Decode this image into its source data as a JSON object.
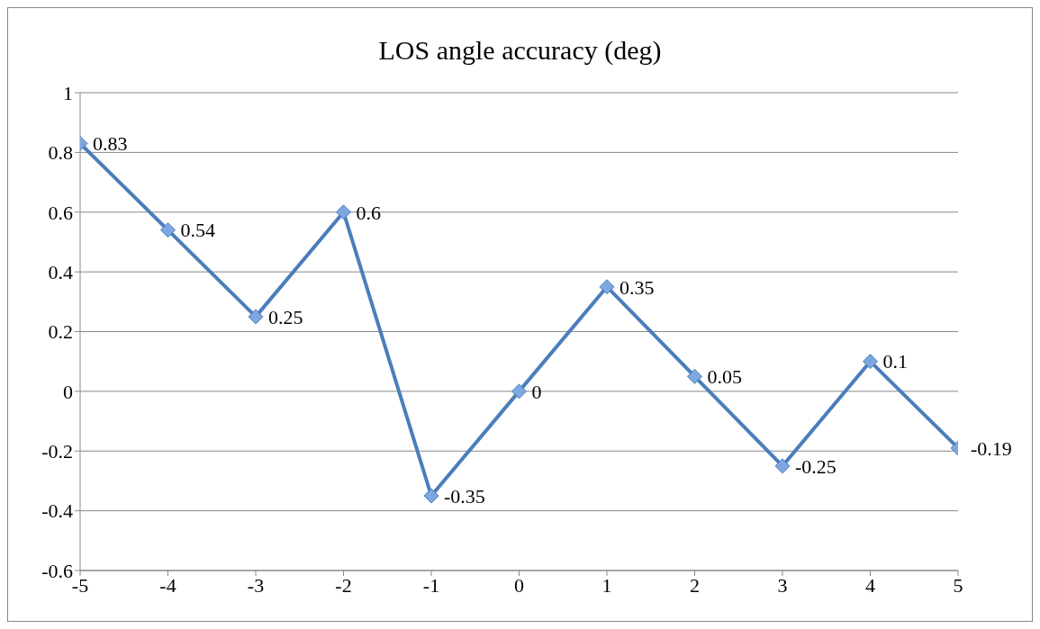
{
  "chart_data": {
    "type": "line",
    "title": "LOS angle accuracy (deg)",
    "x": [
      -5,
      -4,
      -3,
      -2,
      -1,
      0,
      1,
      2,
      3,
      4,
      5
    ],
    "series": [
      {
        "color": "#4a7ebb",
        "values": [
          0.83,
          0.54,
          0.25,
          0.6,
          -0.35,
          0,
          0.35,
          0.05,
          -0.25,
          0.1,
          -0.19
        ]
      }
    ],
    "xlim": [
      -5,
      5
    ],
    "xticks": [
      -5,
      -4,
      -3,
      -2,
      -1,
      0,
      1,
      2,
      3,
      4,
      5
    ],
    "ylim": [
      -0.6,
      1
    ],
    "yticks": [
      -0.6,
      -0.4,
      -0.2,
      0,
      0.2,
      0.4,
      0.6,
      0.8,
      1
    ],
    "grid": "y",
    "marker": "diamond",
    "data_labels": true
  }
}
